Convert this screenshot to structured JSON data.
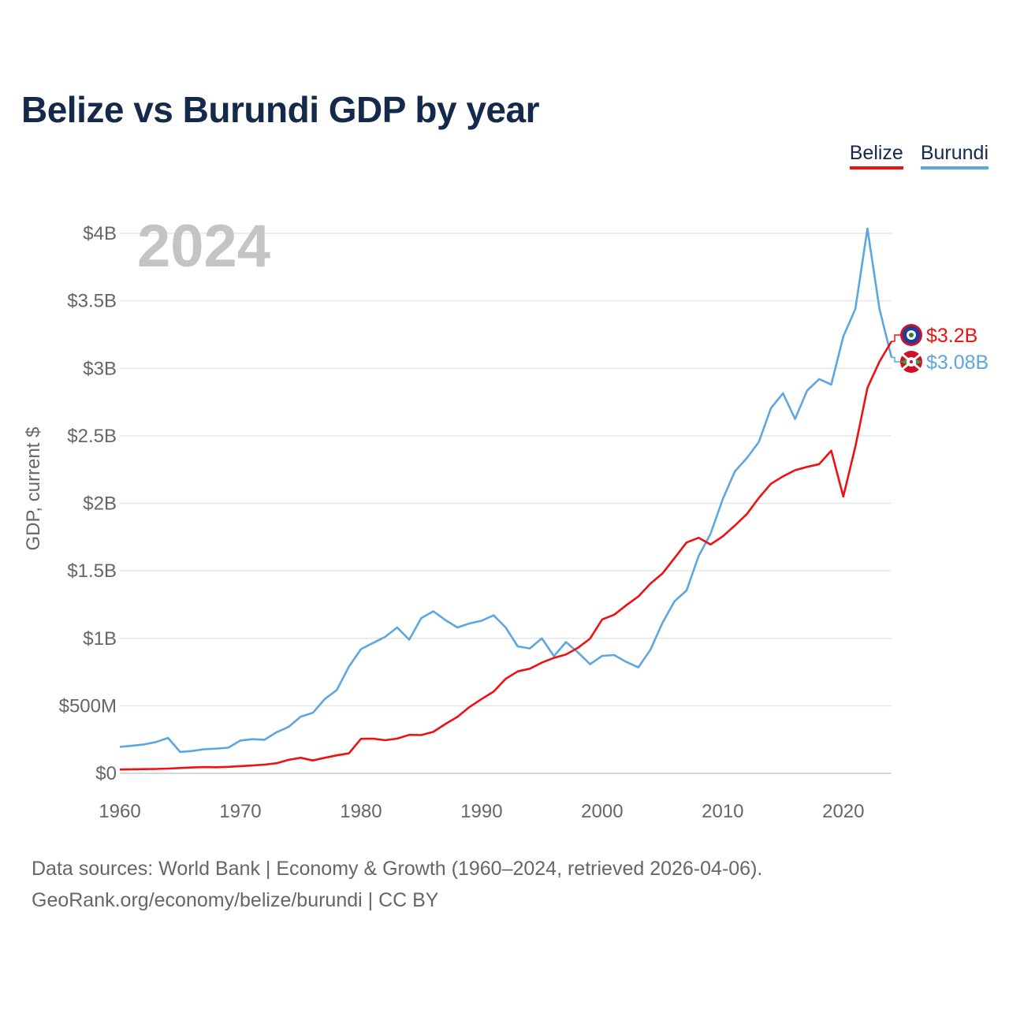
{
  "title": "Belize vs Burundi GDP by year",
  "legend": {
    "belize": "Belize",
    "burundi": "Burundi"
  },
  "year_watermark": "2024",
  "source_line1": "Data sources: World Bank | Economy & Growth (1960–2024, retrieved 2026-04-06).",
  "source_line2": "GeoRank.org/economy/belize/burundi | CC BY",
  "colors": {
    "belize": "#ee1111",
    "burundi": "#5ea6e0",
    "grid": "#e6e6e6",
    "axis_text": "#666666",
    "title": "#15294b"
  },
  "chart_data": {
    "type": "line",
    "title": "Belize vs Burundi GDP by year",
    "xlabel": "",
    "ylabel": "GDP, current $",
    "xlim": [
      1960,
      2024
    ],
    "ylim": [
      0,
      4000000000
    ],
    "x_ticks": [
      1960,
      1970,
      1980,
      1990,
      2000,
      2010,
      2020
    ],
    "x_tick_labels": [
      "1960",
      "1970",
      "1980",
      "1990",
      "2000",
      "2010",
      "2020"
    ],
    "y_ticks": [
      0,
      500000000,
      1000000000,
      1500000000,
      2000000000,
      2500000000,
      3000000000,
      3500000000,
      4000000000
    ],
    "y_tick_labels": [
      "$0",
      "$500M",
      "$1B",
      "$1.5B",
      "$2B",
      "$2.5B",
      "$3B",
      "$3.5B",
      "$4B"
    ],
    "x": [
      1960,
      1961,
      1962,
      1963,
      1964,
      1965,
      1966,
      1967,
      1968,
      1969,
      1970,
      1971,
      1972,
      1973,
      1974,
      1975,
      1976,
      1977,
      1978,
      1979,
      1980,
      1981,
      1982,
      1983,
      1984,
      1985,
      1986,
      1987,
      1988,
      1989,
      1990,
      1991,
      1992,
      1993,
      1994,
      1995,
      1996,
      1997,
      1998,
      1999,
      2000,
      2001,
      2002,
      2003,
      2004,
      2005,
      2006,
      2007,
      2008,
      2009,
      2010,
      2011,
      2012,
      2013,
      2014,
      2015,
      2016,
      2017,
      2018,
      2019,
      2020,
      2021,
      2022,
      2023,
      2024
    ],
    "series": [
      {
        "name": "Belize",
        "end_label": "$3.2B",
        "values": [
          28000000,
          30000000,
          31000000,
          32000000,
          35000000,
          39000000,
          43000000,
          46000000,
          45000000,
          48000000,
          53000000,
          58000000,
          64000000,
          75000000,
          100000000,
          115000000,
          95000000,
          115000000,
          133000000,
          148000000,
          255000000,
          257000000,
          245000000,
          257000000,
          285000000,
          283000000,
          307000000,
          365000000,
          418000000,
          491000000,
          550000000,
          605000000,
          700000000,
          755000000,
          775000000,
          820000000,
          855000000,
          880000000,
          930000000,
          998000000,
          1140000000,
          1175000000,
          1245000000,
          1310000000,
          1405000000,
          1480000000,
          1595000000,
          1710000000,
          1745000000,
          1695000000,
          1755000000,
          1835000000,
          1920000000,
          2040000000,
          2145000000,
          2200000000,
          2245000000,
          2270000000,
          2290000000,
          2390000000,
          2050000000,
          2420000000,
          2855000000,
          3050000000,
          3200000000
        ]
      },
      {
        "name": "Burundi",
        "end_label": "$3.08B",
        "values": [
          196000000,
          204000000,
          214000000,
          232000000,
          262000000,
          158000000,
          165000000,
          178000000,
          183000000,
          190000000,
          243000000,
          253000000,
          249000000,
          304000000,
          344000000,
          420000000,
          448000000,
          550000000,
          617000000,
          790000000,
          920000000,
          965000000,
          1010000000,
          1080000000,
          990000000,
          1150000000,
          1200000000,
          1135000000,
          1080000000,
          1110000000,
          1130000000,
          1170000000,
          1080000000,
          940000000,
          925000000,
          1000000000,
          868000000,
          972000000,
          895000000,
          808000000,
          870000000,
          876000000,
          825000000,
          785000000,
          915000000,
          1115000000,
          1275000000,
          1355000000,
          1610000000,
          1775000000,
          2030000000,
          2235000000,
          2335000000,
          2455000000,
          2705000000,
          2815000000,
          2625000000,
          2835000000,
          2920000000,
          2880000000,
          3235000000,
          3440000000,
          4035000000,
          3440000000,
          3080000000
        ]
      }
    ]
  }
}
